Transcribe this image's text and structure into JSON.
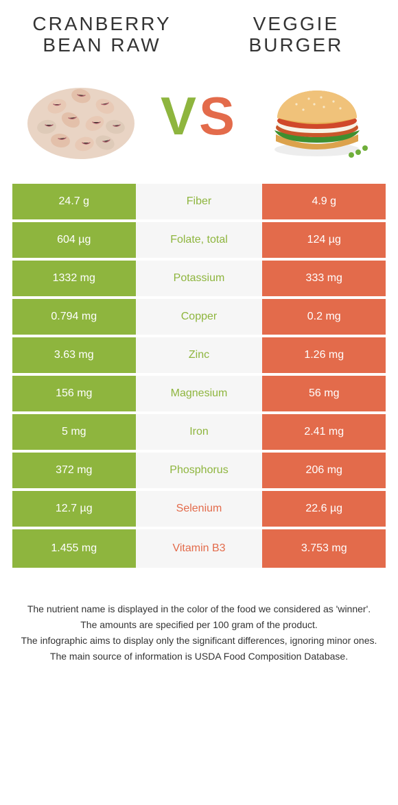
{
  "titles": {
    "left": "CRANBERRY BEAN RAW",
    "right": "VEGGIE BURGER"
  },
  "vs": {
    "v": "V",
    "s": "S"
  },
  "colors": {
    "left": "#8eb53e",
    "right": "#e36b4b",
    "mid_bg": "#f6f6f6",
    "text": "#333333",
    "white": "#ffffff"
  },
  "rows": [
    {
      "left": "24.7 g",
      "label": "Fiber",
      "right": "4.9 g",
      "winner": "left"
    },
    {
      "left": "604 µg",
      "label": "Folate, total",
      "right": "124 µg",
      "winner": "left"
    },
    {
      "left": "1332 mg",
      "label": "Potassium",
      "right": "333 mg",
      "winner": "left"
    },
    {
      "left": "0.794 mg",
      "label": "Copper",
      "right": "0.2 mg",
      "winner": "left"
    },
    {
      "left": "3.63 mg",
      "label": "Zinc",
      "right": "1.26 mg",
      "winner": "left"
    },
    {
      "left": "156 mg",
      "label": "Magnesium",
      "right": "56 mg",
      "winner": "left"
    },
    {
      "left": "5 mg",
      "label": "Iron",
      "right": "2.41 mg",
      "winner": "left"
    },
    {
      "left": "372 mg",
      "label": "Phosphorus",
      "right": "206 mg",
      "winner": "left"
    },
    {
      "left": "12.7 µg",
      "label": "Selenium",
      "right": "22.6 µg",
      "winner": "right"
    },
    {
      "left": "1.455 mg",
      "label": "Vitamin B3",
      "right": "3.753 mg",
      "winner": "right"
    }
  ],
  "footnotes": [
    "The nutrient name is displayed in the color of the food we considered as 'winner'.",
    "The amounts are specified per 100 gram of the product.",
    "The infographic aims to display only the significant differences, ignoring minor ones.",
    "The main source of information is USDA Food Composition Database."
  ]
}
